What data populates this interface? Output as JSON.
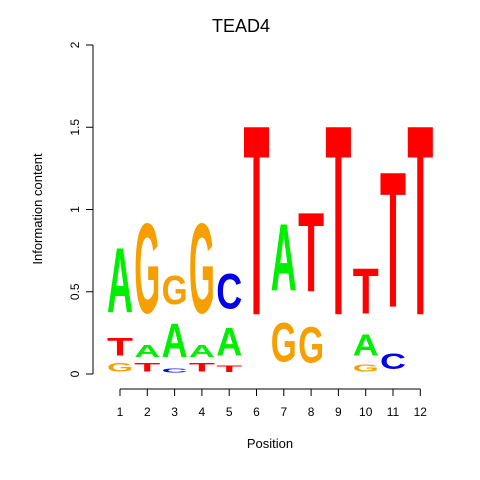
{
  "chart_data": {
    "type": "sequence-logo",
    "title": "TEAD4",
    "xlabel": "Position",
    "ylabel": "Information content",
    "ylim": [
      0,
      2
    ],
    "yticks": [
      "0",
      "0.5",
      "1",
      "1.5",
      "2"
    ],
    "ytick_values": [
      0,
      0.5,
      1,
      1.5,
      2
    ],
    "positions": [
      "1",
      "2",
      "3",
      "4",
      "5",
      "6",
      "7",
      "8",
      "9",
      "10",
      "11",
      "12"
    ],
    "colors": {
      "A": "#00ee00",
      "C": "#0000ee",
      "G": "#f5a000",
      "T": "#ff0000"
    },
    "columns": [
      [
        {
          "letter": "G",
          "height": 0.08
        },
        {
          "letter": "T",
          "height": 0.17
        },
        {
          "letter": "A",
          "height": 0.63
        }
      ],
      [
        {
          "letter": "T",
          "height": 0.08
        },
        {
          "letter": "A",
          "height": 0.12
        },
        {
          "letter": "G",
          "height": 0.87
        }
      ],
      [
        {
          "letter": "C",
          "height": 0.04
        },
        {
          "letter": "A",
          "height": 0.33
        },
        {
          "letter": "G",
          "height": 0.28
        }
      ],
      [
        {
          "letter": "T",
          "height": 0.08
        },
        {
          "letter": "A",
          "height": 0.12
        },
        {
          "letter": "G",
          "height": 0.87
        }
      ],
      [
        {
          "letter": "T",
          "height": 0.06
        },
        {
          "letter": "A",
          "height": 0.27
        },
        {
          "letter": "C",
          "height": 0.34
        }
      ],
      [
        {
          "letter": "T",
          "height": 1.85
        }
      ],
      [
        {
          "letter": "G",
          "height": 0.38
        },
        {
          "letter": "A",
          "height": 0.65
        }
      ],
      [
        {
          "letter": "G",
          "height": 0.35
        },
        {
          "letter": "T",
          "height": 0.77
        }
      ],
      [
        {
          "letter": "T",
          "height": 1.85
        }
      ],
      [
        {
          "letter": "G",
          "height": 0.07
        },
        {
          "letter": "A",
          "height": 0.21
        },
        {
          "letter": "T",
          "height": 0.44
        }
      ],
      [
        {
          "letter": "C",
          "height": 0.15
        },
        {
          "letter": "T",
          "height": 1.32
        }
      ],
      [
        {
          "letter": "T",
          "height": 1.85
        }
      ]
    ]
  }
}
